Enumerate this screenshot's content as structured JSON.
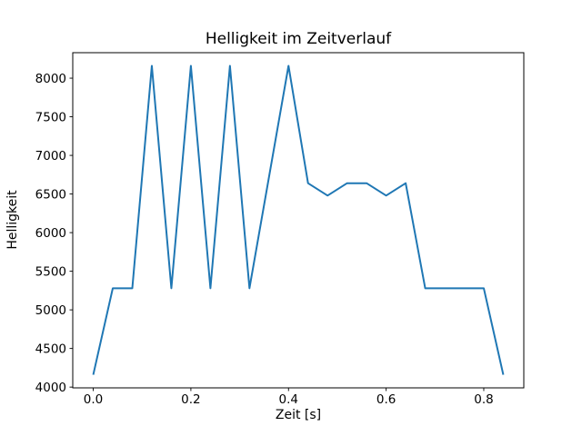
{
  "figure": {
    "background": "#ffffff"
  },
  "chart_data": {
    "type": "line",
    "title": "Helligkeit im Zeitverlauf",
    "xlabel": "Zeit [s]",
    "ylabel": "Helligkeit",
    "line_color": "#1f77b4",
    "axis_color": "#000000",
    "grid": false,
    "legend": null,
    "x": [
      0.0,
      0.04,
      0.08,
      0.12,
      0.16,
      0.2,
      0.24,
      0.28,
      0.32,
      0.36,
      0.4,
      0.44,
      0.48,
      0.52,
      0.56,
      0.6,
      0.64,
      0.68,
      0.72,
      0.76,
      0.8,
      0.84
    ],
    "y": [
      4160,
      5280,
      5280,
      8160,
      5280,
      8160,
      5280,
      8160,
      5280,
      6720,
      8160,
      6640,
      6480,
      6640,
      6640,
      6480,
      6640,
      5280,
      5280,
      5280,
      5280,
      4160
    ],
    "x_ticks": [
      0.0,
      0.2,
      0.4,
      0.6,
      0.8
    ],
    "x_tick_labels": [
      "0.0",
      "0.2",
      "0.4",
      "0.6",
      "0.8"
    ],
    "y_ticks": [
      4000,
      4500,
      5000,
      5500,
      6000,
      6500,
      7000,
      7500,
      8000
    ],
    "y_tick_labels": [
      "4000",
      "4500",
      "5000",
      "5500",
      "6000",
      "6500",
      "7000",
      "7500",
      "8000"
    ],
    "xlim": [
      -0.042,
      0.882
    ],
    "ylim": [
      3990,
      8330
    ]
  }
}
